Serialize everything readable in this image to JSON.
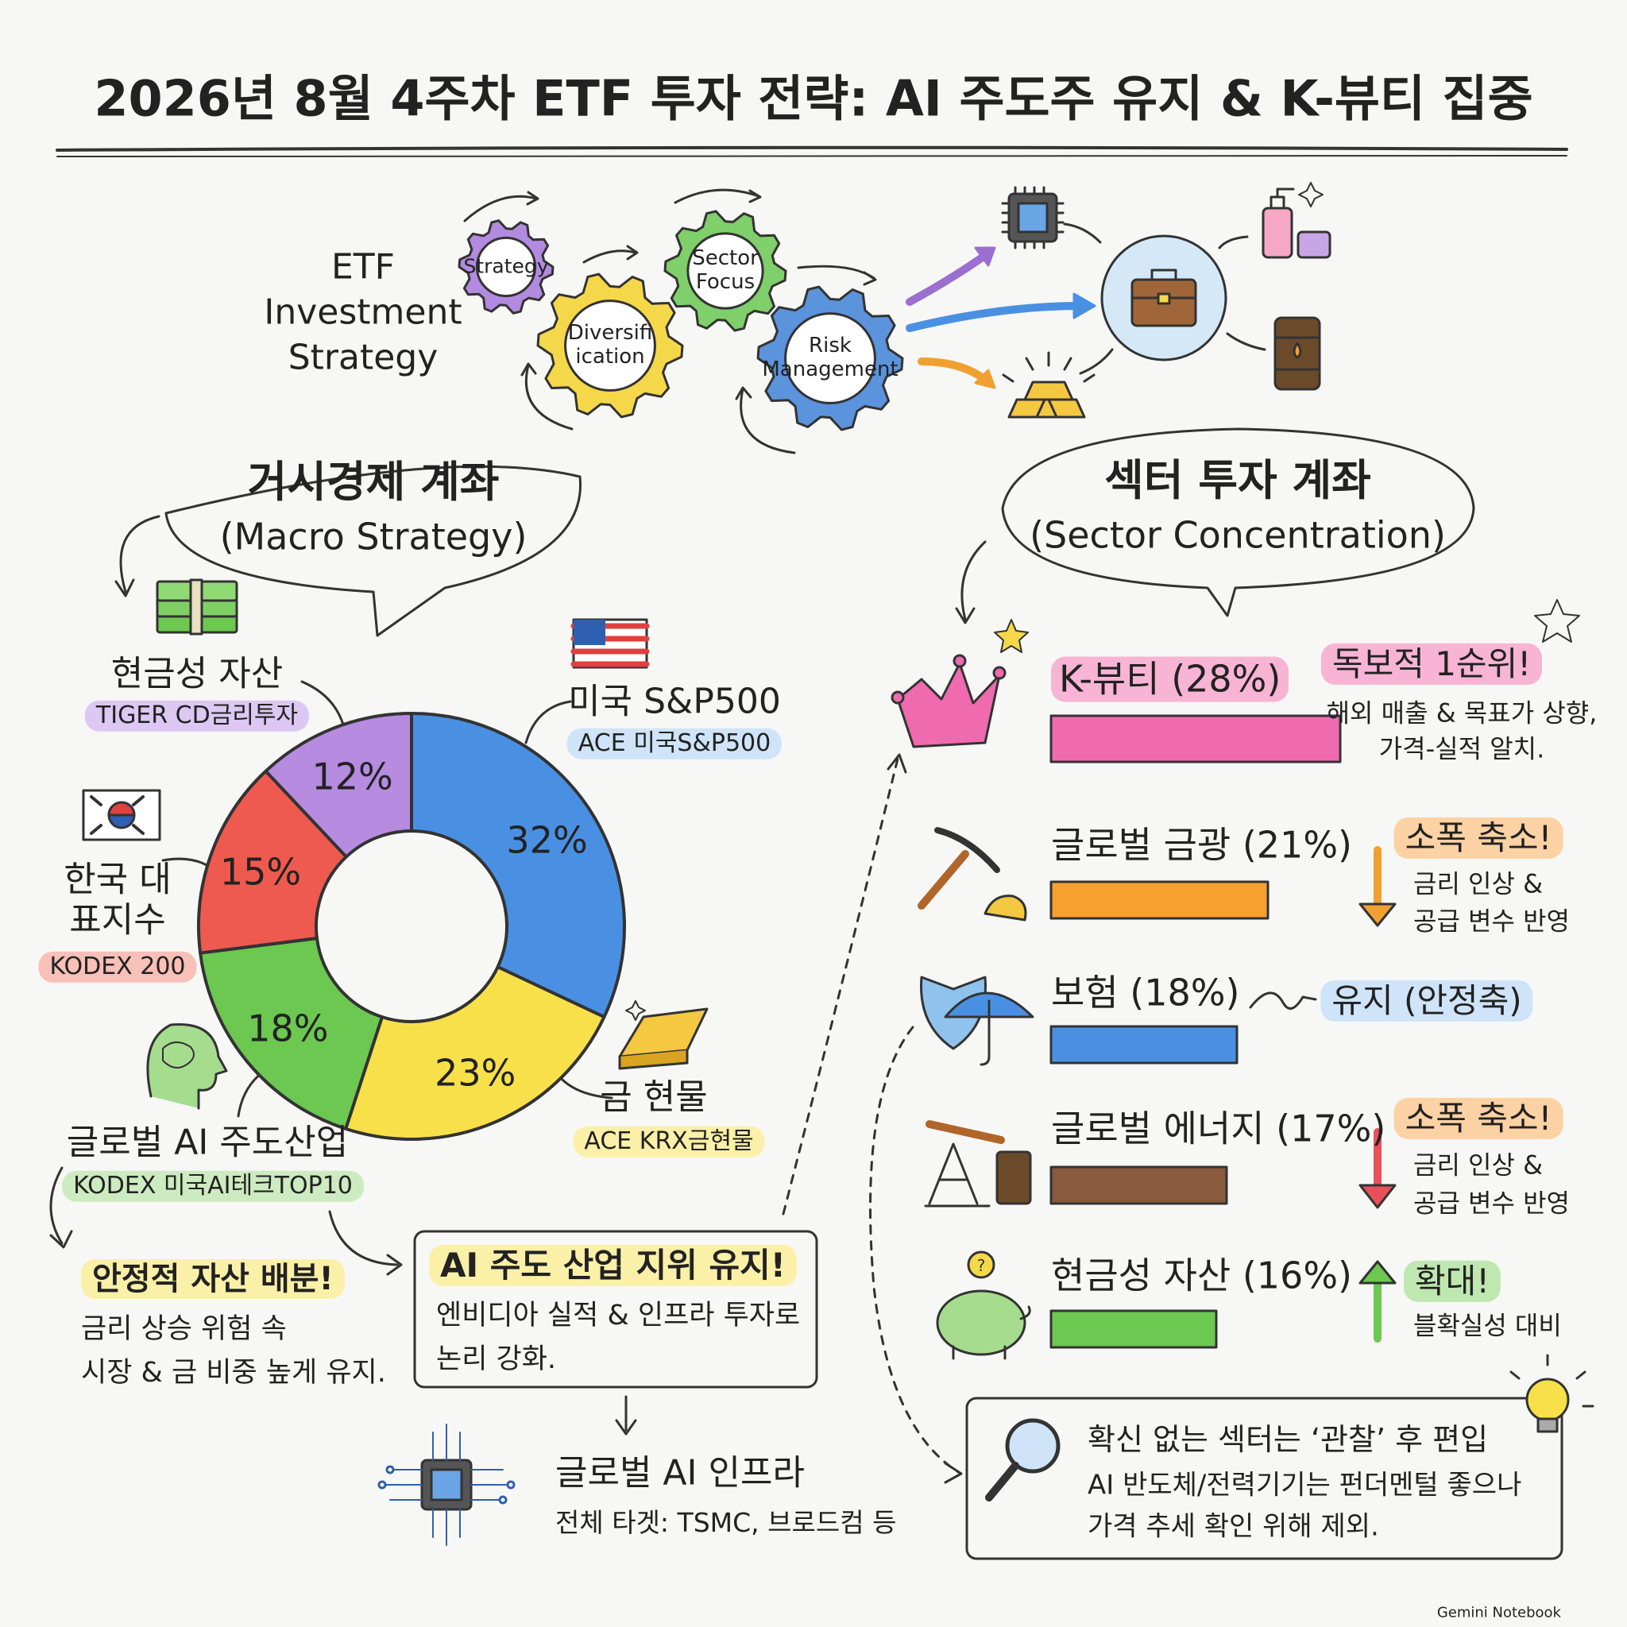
{
  "header": {
    "title": "2026년 8월 4주차 ETF 투자 전략: AI 주도주 유지 & K-뷰티 집중",
    "label_lines": [
      "ETF",
      "Investment",
      "Strategy"
    ],
    "gears": [
      {
        "lines": [
          "Strategy"
        ],
        "color": "#b28be0"
      },
      {
        "lines": [
          "Diversifi",
          "ication"
        ],
        "color": "#f5d84a"
      },
      {
        "lines": [
          "Sector",
          "Focus"
        ],
        "color": "#7fcf6a"
      },
      {
        "lines": [
          "Risk",
          "Management"
        ],
        "color": "#5b93dc"
      }
    ]
  },
  "macro_bubble": [
    "거시경제 계좌",
    "(Macro Strategy)"
  ],
  "sector_bubble": [
    "섹터 투자 계좌",
    "(Sector Concentration)"
  ],
  "chart_data": [
    {
      "type": "donut",
      "categories": [
        "미국 S&P500",
        "금 현물",
        "글로벌 AI 주도산업",
        "한국 대표지수",
        "현금성 자산"
      ],
      "etfs": [
        "ACE 미국S&P500",
        "ACE KRX금현물",
        "KODEX 미국AI테크TOP10",
        "KODEX 200",
        "TIGER CD금리투자"
      ],
      "values": [
        32,
        23,
        18,
        15,
        12
      ],
      "value_labels": [
        "32%",
        "23%",
        "18%",
        "15%",
        "12%"
      ],
      "colors": [
        "#4a90e2",
        "#f7e04a",
        "#6cc850",
        "#ee5a4f",
        "#b68be0"
      ],
      "label_colors": [
        "#cfe4f8",
        "#fbf0a8",
        "#cdebc0",
        "#f8c0b8",
        "#dcc8f2"
      ]
    },
    {
      "type": "bar",
      "categories": [
        "K-뷰티 (28%)",
        "글로벌 금광 (21%)",
        "보험 (18%)",
        "글로벌 에너지 (17%)",
        "현금성 자산 (16%)"
      ],
      "values": [
        28,
        21,
        18,
        17,
        16
      ],
      "colors": [
        "#f06ab0",
        "#f7a030",
        "#4a90e2",
        "#8a5a3c",
        "#6cc850"
      ]
    }
  ],
  "sector_notes": [
    {
      "tag": "독보적 1순위!",
      "lines": [
        "해외 매출 & 목표가 상향,",
        "가격-실적 알치."
      ],
      "color": "#f8b4d4"
    },
    {
      "tag": "소폭 축소!",
      "lines": [
        "금리 인상 &",
        "공급 변수 반영"
      ],
      "color": "#fcd2a4"
    },
    {
      "tag": "유지 (안정축)",
      "lines": [],
      "color": "#cfe4f8"
    },
    {
      "tag": "소폭 축소!",
      "lines": [
        "금리 인상 &",
        "공급 변수 반영"
      ],
      "color": "#fcd2a4"
    },
    {
      "tag": "확대!",
      "lines": [
        "블확실성 대비"
      ],
      "color": "#bfe8b0"
    }
  ],
  "stable_note": {
    "title": "안정적 자산 배분!",
    "lines": [
      "금리 상승 위험 속",
      "시장 & 금 비중 높게 유지."
    ]
  },
  "ai_box": {
    "title": "AI 주도 산업 지위 유지!",
    "lines": [
      "엔비디아 실적 & 인프라 투자로",
      "논리 강화."
    ]
  },
  "infra": {
    "title": "글로벌 AI 인프라",
    "line": "전체 타겟: TSMC, 브로드컴 등"
  },
  "watch_box": {
    "title": "확신 없는 섹터는 ‘관찰’ 후 편입",
    "lines": [
      "AI 반도체/전력기기는 펀더멘털 좋으나",
      "가격 추세 확인 위해 제외."
    ]
  },
  "footer": "Gemini Notebook"
}
